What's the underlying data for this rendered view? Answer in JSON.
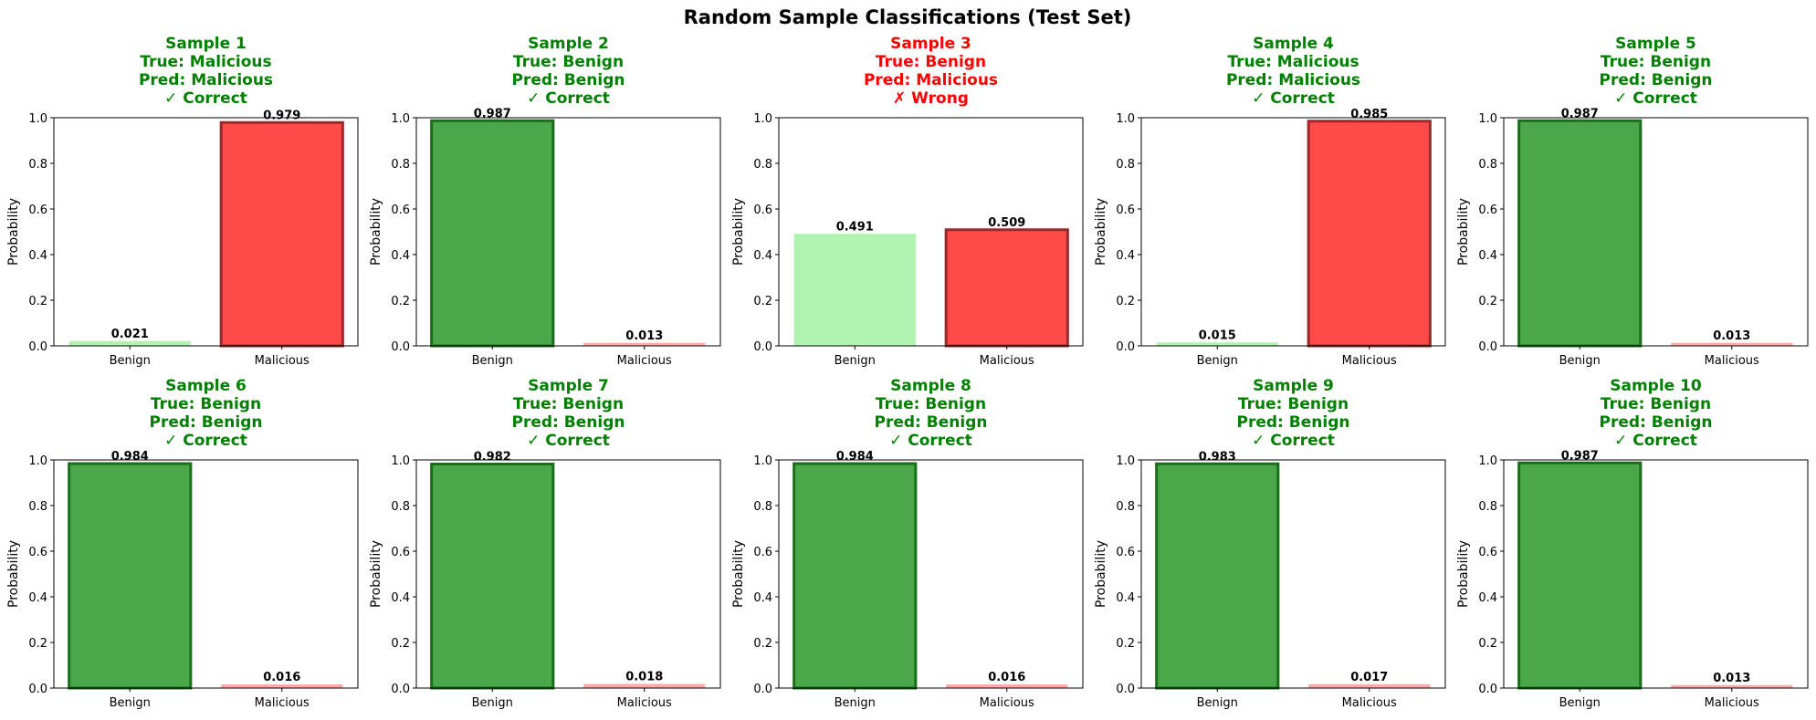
{
  "title": "Random Sample Classifications (Test Set)",
  "colors": {
    "correct": "#008000",
    "wrong": "#ff0000",
    "benign_strong": "#4aa84a",
    "benign_light": "#b0f2b0",
    "malicious_strong": "#ff4a4a",
    "malicious_light": "#ffaaaa",
    "edge_green": "#1a6e1a",
    "edge_red": "#992a2a"
  },
  "chart_data": [
    {
      "type": "bar",
      "title": [
        "Sample 1",
        "True: Malicious",
        "Pred: Malicious",
        "✓ Correct"
      ],
      "correct": true,
      "predicted": "Malicious",
      "categories": [
        "Benign",
        "Malicious"
      ],
      "values": [
        0.021,
        0.979
      ],
      "labels": [
        "0.021",
        "0.979"
      ],
      "ylabel": "Probability",
      "ylim": [
        0,
        1.0
      ],
      "yticks": [
        "0.0",
        "0.2",
        "0.4",
        "0.6",
        "0.8",
        "1.0"
      ]
    },
    {
      "type": "bar",
      "title": [
        "Sample 2",
        "True: Benign",
        "Pred: Benign",
        "✓ Correct"
      ],
      "correct": true,
      "predicted": "Benign",
      "categories": [
        "Benign",
        "Malicious"
      ],
      "values": [
        0.987,
        0.013
      ],
      "labels": [
        "0.987",
        "0.013"
      ],
      "ylabel": "Probability",
      "ylim": [
        0,
        1.0
      ],
      "yticks": [
        "0.0",
        "0.2",
        "0.4",
        "0.6",
        "0.8",
        "1.0"
      ]
    },
    {
      "type": "bar",
      "title": [
        "Sample 3",
        "True: Benign",
        "Pred: Malicious",
        "✗ Wrong"
      ],
      "correct": false,
      "predicted": "Malicious",
      "categories": [
        "Benign",
        "Malicious"
      ],
      "values": [
        0.491,
        0.509
      ],
      "labels": [
        "0.491",
        "0.509"
      ],
      "ylabel": "Probability",
      "ylim": [
        0,
        1.0
      ],
      "yticks": [
        "0.0",
        "0.2",
        "0.4",
        "0.6",
        "0.8",
        "1.0"
      ]
    },
    {
      "type": "bar",
      "title": [
        "Sample 4",
        "True: Malicious",
        "Pred: Malicious",
        "✓ Correct"
      ],
      "correct": true,
      "predicted": "Malicious",
      "categories": [
        "Benign",
        "Malicious"
      ],
      "values": [
        0.015,
        0.985
      ],
      "labels": [
        "0.015",
        "0.985"
      ],
      "ylabel": "Probability",
      "ylim": [
        0,
        1.0
      ],
      "yticks": [
        "0.0",
        "0.2",
        "0.4",
        "0.6",
        "0.8",
        "1.0"
      ]
    },
    {
      "type": "bar",
      "title": [
        "Sample 5",
        "True: Benign",
        "Pred: Benign",
        "✓ Correct"
      ],
      "correct": true,
      "predicted": "Benign",
      "categories": [
        "Benign",
        "Malicious"
      ],
      "values": [
        0.987,
        0.013
      ],
      "labels": [
        "0.987",
        "0.013"
      ],
      "ylabel": "Probability",
      "ylim": [
        0,
        1.0
      ],
      "yticks": [
        "0.0",
        "0.2",
        "0.4",
        "0.6",
        "0.8",
        "1.0"
      ]
    },
    {
      "type": "bar",
      "title": [
        "Sample 6",
        "True: Benign",
        "Pred: Benign",
        "✓ Correct"
      ],
      "correct": true,
      "predicted": "Benign",
      "categories": [
        "Benign",
        "Malicious"
      ],
      "values": [
        0.984,
        0.016
      ],
      "labels": [
        "0.984",
        "0.016"
      ],
      "ylabel": "Probability",
      "ylim": [
        0,
        1.0
      ],
      "yticks": [
        "0.0",
        "0.2",
        "0.4",
        "0.6",
        "0.8",
        "1.0"
      ]
    },
    {
      "type": "bar",
      "title": [
        "Sample 7",
        "True: Benign",
        "Pred: Benign",
        "✓ Correct"
      ],
      "correct": true,
      "predicted": "Benign",
      "categories": [
        "Benign",
        "Malicious"
      ],
      "values": [
        0.982,
        0.018
      ],
      "labels": [
        "0.982",
        "0.018"
      ],
      "ylabel": "Probability",
      "ylim": [
        0,
        1.0
      ],
      "yticks": [
        "0.0",
        "0.2",
        "0.4",
        "0.6",
        "0.8",
        "1.0"
      ]
    },
    {
      "type": "bar",
      "title": [
        "Sample 8",
        "True: Benign",
        "Pred: Benign",
        "✓ Correct"
      ],
      "correct": true,
      "predicted": "Benign",
      "categories": [
        "Benign",
        "Malicious"
      ],
      "values": [
        0.984,
        0.016
      ],
      "labels": [
        "0.984",
        "0.016"
      ],
      "ylabel": "Probability",
      "ylim": [
        0,
        1.0
      ],
      "yticks": [
        "0.0",
        "0.2",
        "0.4",
        "0.6",
        "0.8",
        "1.0"
      ]
    },
    {
      "type": "bar",
      "title": [
        "Sample 9",
        "True: Benign",
        "Pred: Benign",
        "✓ Correct"
      ],
      "correct": true,
      "predicted": "Benign",
      "categories": [
        "Benign",
        "Malicious"
      ],
      "values": [
        0.983,
        0.017
      ],
      "labels": [
        "0.983",
        "0.017"
      ],
      "ylabel": "Probability",
      "ylim": [
        0,
        1.0
      ],
      "yticks": [
        "0.0",
        "0.2",
        "0.4",
        "0.6",
        "0.8",
        "1.0"
      ]
    },
    {
      "type": "bar",
      "title": [
        "Sample 10",
        "True: Benign",
        "Pred: Benign",
        "✓ Correct"
      ],
      "correct": true,
      "predicted": "Benign",
      "categories": [
        "Benign",
        "Malicious"
      ],
      "values": [
        0.987,
        0.013
      ],
      "labels": [
        "0.987",
        "0.013"
      ],
      "ylabel": "Probability",
      "ylim": [
        0,
        1.0
      ],
      "yticks": [
        "0.0",
        "0.2",
        "0.4",
        "0.6",
        "0.8",
        "1.0"
      ]
    }
  ]
}
